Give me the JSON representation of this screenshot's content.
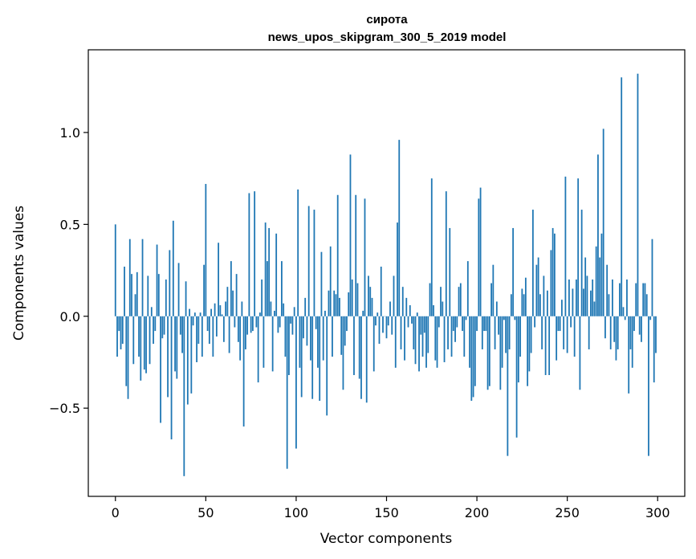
{
  "chart_data": {
    "type": "bar",
    "title_line1": "сирота",
    "title_line2": "news_upos_skipgram_300_5_2019 model",
    "xlabel": "Vector components",
    "ylabel": "Components values",
    "xlim": [
      -15,
      315
    ],
    "ylim": [
      -0.98,
      1.45
    ],
    "xticks": [
      0,
      50,
      100,
      150,
      200,
      250,
      300
    ],
    "xtick_labels": [
      "0",
      "50",
      "100",
      "150",
      "200",
      "250",
      "300"
    ],
    "yticks": [
      -0.5,
      0.0,
      0.5,
      1.0
    ],
    "ytick_labels": [
      "−0.5",
      "0.0",
      "0.5",
      "1.0"
    ],
    "bar_color": "#1f77b4",
    "values": [
      0.5,
      -0.22,
      -0.08,
      -0.18,
      -0.15,
      0.27,
      -0.38,
      -0.45,
      0.42,
      0.23,
      -0.26,
      0.12,
      0.24,
      -0.22,
      -0.35,
      0.42,
      -0.29,
      -0.31,
      0.22,
      -0.26,
      0.05,
      -0.15,
      -0.08,
      0.39,
      0.23,
      -0.58,
      -0.12,
      -0.1,
      0.2,
      -0.44,
      0.36,
      -0.67,
      0.52,
      -0.3,
      -0.34,
      0.29,
      -0.1,
      -0.2,
      -0.87,
      0.19,
      -0.48,
      0.04,
      -0.42,
      -0.05,
      0.02,
      -0.25,
      -0.15,
      0.02,
      -0.22,
      0.28,
      0.72,
      -0.08,
      -0.15,
      0.04,
      -0.22,
      0.07,
      -0.11,
      0.4,
      0.06,
      0.01,
      -0.14,
      0.08,
      0.16,
      -0.2,
      0.3,
      0.14,
      -0.06,
      0.23,
      -0.14,
      -0.24,
      0.08,
      -0.6,
      -0.18,
      -0.1,
      0.67,
      -0.09,
      -0.08,
      0.68,
      -0.06,
      -0.36,
      0.02,
      0.2,
      -0.28,
      0.51,
      0.3,
      0.48,
      0.08,
      -0.3,
      0.03,
      0.45,
      -0.09,
      -0.06,
      0.3,
      0.07,
      -0.22,
      -0.83,
      -0.32,
      -0.04,
      -0.1,
      0.05,
      -0.72,
      0.69,
      -0.28,
      -0.44,
      -0.12,
      0.1,
      -0.16,
      0.6,
      -0.24,
      -0.45,
      0.58,
      -0.07,
      -0.28,
      -0.46,
      0.35,
      -0.24,
      0.03,
      -0.54,
      0.14,
      0.38,
      -0.22,
      0.14,
      0.12,
      0.66,
      0.1,
      -0.21,
      -0.4,
      -0.16,
      -0.08,
      0.13,
      0.88,
      0.2,
      -0.32,
      0.66,
      0.18,
      -0.34,
      -0.45,
      0.03,
      0.64,
      -0.47,
      0.22,
      0.16,
      0.1,
      -0.3,
      -0.05,
      0.02,
      -0.15,
      0.27,
      -0.09,
      0.0,
      -0.12,
      -0.05,
      0.08,
      -0.1,
      0.22,
      -0.28,
      0.51,
      0.96,
      -0.18,
      0.16,
      -0.24,
      0.1,
      -0.06,
      0.06,
      -0.04,
      -0.18,
      -0.26,
      0.02,
      -0.3,
      -0.1,
      -0.22,
      -0.09,
      -0.28,
      -0.2,
      0.18,
      0.75,
      0.06,
      -0.24,
      -0.28,
      -0.06,
      0.16,
      0.08,
      -0.25,
      0.68,
      -0.18,
      0.48,
      -0.22,
      -0.08,
      -0.14,
      -0.06,
      0.16,
      0.18,
      -0.08,
      -0.22,
      -0.02,
      0.3,
      -0.28,
      -0.46,
      -0.44,
      -0.38,
      -0.08,
      0.64,
      0.7,
      -0.18,
      -0.08,
      -0.08,
      -0.4,
      -0.38,
      0.18,
      0.28,
      -0.18,
      0.08,
      -0.1,
      -0.4,
      -0.28,
      -0.02,
      -0.2,
      -0.76,
      -0.18,
      0.12,
      0.48,
      -0.02,
      -0.66,
      -0.36,
      -0.22,
      0.15,
      0.12,
      0.21,
      -0.38,
      -0.3,
      -0.2,
      0.58,
      -0.06,
      0.28,
      0.32,
      0.12,
      -0.18,
      0.22,
      -0.32,
      0.14,
      -0.32,
      0.36,
      0.48,
      0.45,
      -0.24,
      -0.08,
      -0.08,
      0.09,
      -0.18,
      0.76,
      -0.2,
      0.2,
      -0.06,
      0.15,
      -0.22,
      0.2,
      0.75,
      -0.4,
      0.58,
      0.15,
      0.32,
      0.22,
      -0.18,
      0.14,
      0.2,
      0.08,
      0.38,
      0.88,
      0.32,
      0.45,
      1.02,
      -0.12,
      0.28,
      0.12,
      -0.18,
      0.2,
      -0.14,
      -0.24,
      -0.18,
      0.18,
      1.3,
      0.05,
      -0.02,
      0.2,
      -0.42,
      -0.18,
      -0.28,
      -0.08,
      0.18,
      1.32,
      -0.1,
      -0.14,
      0.18,
      0.18,
      0.12,
      -0.76,
      -0.02,
      0.42,
      -0.36,
      -0.2
    ]
  }
}
